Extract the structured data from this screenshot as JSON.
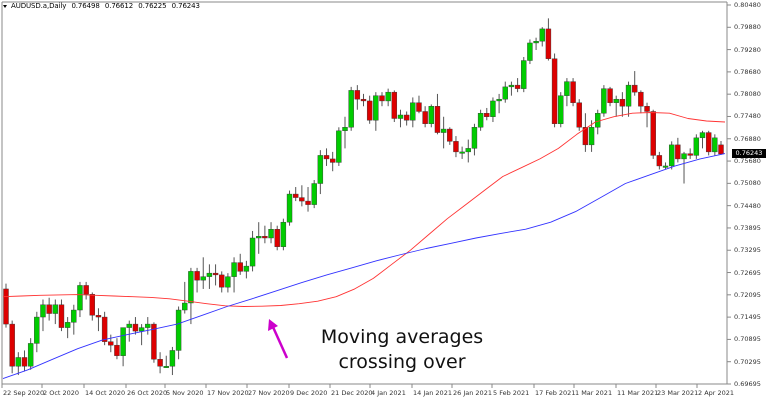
{
  "header": {
    "symbol": "AUDUSD.a,Daily",
    "open": "0.76498",
    "high": "0.76612",
    "low": "0.76225",
    "close": "0.76243",
    "menu_icon": "triangle-down"
  },
  "annotation": {
    "line1": "Moving averages",
    "line2": "crossing over",
    "arrow_color": "#CC00CC"
  },
  "colors": {
    "bull": "#00CC00",
    "bear": "#DD0000",
    "wick": "#555555",
    "ma_fast": "#FF3333",
    "ma_slow": "#3333FF",
    "axis": "#888888",
    "price_tag_bg": "#000000"
  },
  "price_tag": "0.76243",
  "chart_data": {
    "type": "candlestick",
    "title": "AUDUSD.a,Daily",
    "xlabel": "",
    "ylabel": "",
    "ylim": [
      0.69695,
      0.8048
    ],
    "grid": false,
    "y_ticks": [
      "0.80480",
      "0.79880",
      "0.79280",
      "0.78680",
      "0.78080",
      "0.77480",
      "0.76880",
      "0.75680",
      "0.75080",
      "0.74480",
      "0.73895",
      "0.73295",
      "0.72695",
      "0.72095",
      "0.71495",
      "0.70895",
      "0.70295",
      "0.69695"
    ],
    "x_ticks": [
      "22 Sep 2020",
      "2 Oct 2020",
      "14 Oct 2020",
      "26 Oct 2020",
      "5 Nov 2020",
      "17 Nov 2020",
      "27 Nov 2020",
      "9 Dec 2020",
      "21 Dec 2020",
      "4 Jan 2021",
      "14 Jan 2021",
      "26 Jan 2021",
      "5 Feb 2021",
      "17 Feb 2021",
      "1 Mar 2021",
      "11 Mar 2021",
      "23 Mar 2021",
      "2 Apr 2021"
    ],
    "series": [
      {
        "name": "MA fast (red)",
        "values_approx": [
          0.7218,
          0.722,
          0.7222,
          0.7223,
          0.7224,
          0.7222,
          0.722,
          0.7218,
          0.7216,
          0.7212,
          0.7205,
          0.7198,
          0.7192,
          0.719,
          0.7191,
          0.7193,
          0.7198,
          0.7205,
          0.7218,
          0.724,
          0.727,
          0.731,
          0.735,
          0.7395,
          0.744,
          0.748,
          0.752,
          0.756,
          0.7585,
          0.761,
          0.764,
          0.768,
          0.7715,
          0.773,
          0.774,
          0.7742,
          0.774,
          0.7725,
          0.7718,
          0.7715
        ]
      },
      {
        "name": "MA slow (blue)",
        "values_approx": [
          0.6985,
          0.701,
          0.704,
          0.707,
          0.7095,
          0.711,
          0.7125,
          0.714,
          0.7165,
          0.719,
          0.7212,
          0.7235,
          0.7258,
          0.728,
          0.73,
          0.732,
          0.7338,
          0.7355,
          0.737,
          0.7385,
          0.7398,
          0.741,
          0.743,
          0.746,
          0.75,
          0.754,
          0.7565,
          0.759,
          0.761,
          0.7625
        ]
      }
    ],
    "candles": [
      [
        0.724,
        0.7255,
        0.713,
        0.714
      ],
      [
        0.714,
        0.715,
        0.7,
        0.702
      ],
      [
        0.702,
        0.706,
        0.6995,
        0.7045
      ],
      [
        0.7045,
        0.7065,
        0.7005,
        0.702
      ],
      [
        0.702,
        0.71,
        0.701,
        0.7085
      ],
      [
        0.7085,
        0.7175,
        0.706,
        0.716
      ],
      [
        0.716,
        0.721,
        0.712,
        0.7195
      ],
      [
        0.7195,
        0.7215,
        0.715,
        0.717
      ],
      [
        0.717,
        0.721,
        0.714,
        0.7195
      ],
      [
        0.7195,
        0.721,
        0.712,
        0.713
      ],
      [
        0.713,
        0.716,
        0.71,
        0.7145
      ],
      [
        0.7145,
        0.7195,
        0.711,
        0.718
      ],
      [
        0.718,
        0.726,
        0.716,
        0.725
      ],
      [
        0.725,
        0.726,
        0.721,
        0.7225
      ],
      [
        0.7225,
        0.723,
        0.715,
        0.7165
      ],
      [
        0.7165,
        0.7185,
        0.712,
        0.716
      ],
      [
        0.716,
        0.7175,
        0.708,
        0.709
      ],
      [
        0.709,
        0.711,
        0.706,
        0.708
      ],
      [
        0.708,
        0.71,
        0.704,
        0.705
      ],
      [
        0.705,
        0.712,
        0.702,
        0.713
      ],
      [
        0.713,
        0.715,
        0.709,
        0.714
      ],
      [
        0.714,
        0.716,
        0.711,
        0.712
      ],
      [
        0.712,
        0.714,
        0.708,
        0.713
      ],
      [
        0.713,
        0.716,
        0.711,
        0.714
      ],
      [
        0.714,
        0.7145,
        0.703,
        0.704
      ],
      [
        0.704,
        0.706,
        0.7,
        0.702
      ],
      [
        0.702,
        0.705,
        0.7015,
        0.702
      ],
      [
        0.702,
        0.7075,
        0.6995,
        0.7065
      ],
      [
        0.7065,
        0.719,
        0.704,
        0.718
      ],
      [
        0.718,
        0.726,
        0.717,
        0.72
      ],
      [
        0.72,
        0.73,
        0.714,
        0.729
      ],
      [
        0.729,
        0.73,
        0.723,
        0.7265
      ],
      [
        0.7265,
        0.733,
        0.724,
        0.7275
      ],
      [
        0.7275,
        0.731,
        0.724,
        0.7285
      ],
      [
        0.7285,
        0.731,
        0.725,
        0.728
      ],
      [
        0.728,
        0.729,
        0.723,
        0.7245
      ],
      [
        0.7245,
        0.7285,
        0.723,
        0.7275
      ],
      [
        0.7275,
        0.733,
        0.723,
        0.7315
      ],
      [
        0.7315,
        0.734,
        0.728,
        0.729
      ],
      [
        0.729,
        0.732,
        0.727,
        0.7305
      ],
      [
        0.7305,
        0.7405,
        0.729,
        0.7385
      ],
      [
        0.7385,
        0.743,
        0.734,
        0.739
      ],
      [
        0.739,
        0.742,
        0.737,
        0.7385
      ],
      [
        0.7385,
        0.743,
        0.737,
        0.741
      ],
      [
        0.741,
        0.742,
        0.735,
        0.736
      ],
      [
        0.736,
        0.744,
        0.735,
        0.743
      ],
      [
        0.743,
        0.752,
        0.742,
        0.751
      ],
      [
        0.751,
        0.753,
        0.749,
        0.75
      ],
      [
        0.75,
        0.7535,
        0.7475,
        0.749
      ],
      [
        0.749,
        0.753,
        0.746,
        0.748
      ],
      [
        0.748,
        0.755,
        0.747,
        0.754
      ],
      [
        0.754,
        0.7635,
        0.751,
        0.762
      ],
      [
        0.762,
        0.764,
        0.759,
        0.761
      ],
      [
        0.761,
        0.763,
        0.7575,
        0.76
      ],
      [
        0.76,
        0.77,
        0.759,
        0.769
      ],
      [
        0.769,
        0.773,
        0.764,
        0.77
      ],
      [
        0.77,
        0.7815,
        0.769,
        0.7805
      ],
      [
        0.7805,
        0.782,
        0.775,
        0.778
      ],
      [
        0.778,
        0.7795,
        0.776,
        0.7775
      ],
      [
        0.7775,
        0.779,
        0.771,
        0.772
      ],
      [
        0.772,
        0.78,
        0.769,
        0.779
      ],
      [
        0.779,
        0.78,
        0.776,
        0.7775
      ],
      [
        0.7775,
        0.781,
        0.776,
        0.78
      ],
      [
        0.78,
        0.7805,
        0.7715,
        0.7725
      ],
      [
        0.7725,
        0.775,
        0.77,
        0.7735
      ],
      [
        0.7735,
        0.7745,
        0.7705,
        0.772
      ],
      [
        0.772,
        0.7785,
        0.77,
        0.777
      ],
      [
        0.777,
        0.779,
        0.774,
        0.7745
      ],
      [
        0.7745,
        0.776,
        0.77,
        0.771
      ],
      [
        0.771,
        0.7765,
        0.77,
        0.776
      ],
      [
        0.776,
        0.7795,
        0.768,
        0.7685
      ],
      [
        0.7685,
        0.773,
        0.764,
        0.7695
      ],
      [
        0.7695,
        0.77,
        0.765,
        0.766
      ],
      [
        0.766,
        0.7675,
        0.7615,
        0.763
      ],
      [
        0.763,
        0.7645,
        0.761,
        0.763
      ],
      [
        0.763,
        0.7665,
        0.76,
        0.764
      ],
      [
        0.764,
        0.771,
        0.762,
        0.77
      ],
      [
        0.77,
        0.775,
        0.769,
        0.774
      ],
      [
        0.774,
        0.7755,
        0.772,
        0.773
      ],
      [
        0.773,
        0.7785,
        0.7715,
        0.7775
      ],
      [
        0.7775,
        0.7795,
        0.774,
        0.778
      ],
      [
        0.778,
        0.783,
        0.777,
        0.7815
      ],
      [
        0.7815,
        0.783,
        0.779,
        0.782
      ],
      [
        0.782,
        0.784,
        0.78,
        0.781
      ],
      [
        0.781,
        0.79,
        0.78,
        0.789
      ],
      [
        0.789,
        0.795,
        0.788,
        0.794
      ],
      [
        0.794,
        0.7955,
        0.792,
        0.7945
      ],
      [
        0.7945,
        0.7985,
        0.793,
        0.798
      ],
      [
        0.798,
        0.801,
        0.789,
        0.7895
      ],
      [
        0.7895,
        0.791,
        0.77,
        0.771
      ],
      [
        0.771,
        0.78,
        0.77,
        0.779
      ],
      [
        0.779,
        0.784,
        0.776,
        0.783
      ],
      [
        0.783,
        0.784,
        0.776,
        0.777
      ],
      [
        0.777,
        0.778,
        0.769,
        0.77
      ],
      [
        0.77,
        0.774,
        0.763,
        0.765
      ],
      [
        0.765,
        0.772,
        0.763,
        0.77
      ],
      [
        0.77,
        0.775,
        0.768,
        0.774
      ],
      [
        0.774,
        0.782,
        0.773,
        0.781
      ],
      [
        0.781,
        0.7815,
        0.776,
        0.777
      ],
      [
        0.777,
        0.779,
        0.773,
        0.778
      ],
      [
        0.778,
        0.78,
        0.773,
        0.776
      ],
      [
        0.776,
        0.783,
        0.773,
        0.782
      ],
      [
        0.782,
        0.786,
        0.779,
        0.78
      ],
      [
        0.78,
        0.7805,
        0.774,
        0.776
      ],
      [
        0.776,
        0.777,
        0.77,
        0.7745
      ],
      [
        0.7745,
        0.775,
        0.761,
        0.762
      ],
      [
        0.762,
        0.763,
        0.758,
        0.759
      ],
      [
        0.759,
        0.76,
        0.758,
        0.759
      ],
      [
        0.759,
        0.766,
        0.758,
        0.765
      ],
      [
        0.765,
        0.767,
        0.76,
        0.761
      ],
      [
        0.761,
        0.763,
        0.754,
        0.7625
      ],
      [
        0.7625,
        0.764,
        0.761,
        0.762
      ],
      [
        0.762,
        0.768,
        0.761,
        0.767
      ],
      [
        0.767,
        0.769,
        0.764,
        0.7685
      ],
      [
        0.7685,
        0.769,
        0.762,
        0.763
      ],
      [
        0.763,
        0.768,
        0.762,
        0.767
      ],
      [
        0.765,
        0.7661,
        0.7622,
        0.7624
      ]
    ]
  }
}
